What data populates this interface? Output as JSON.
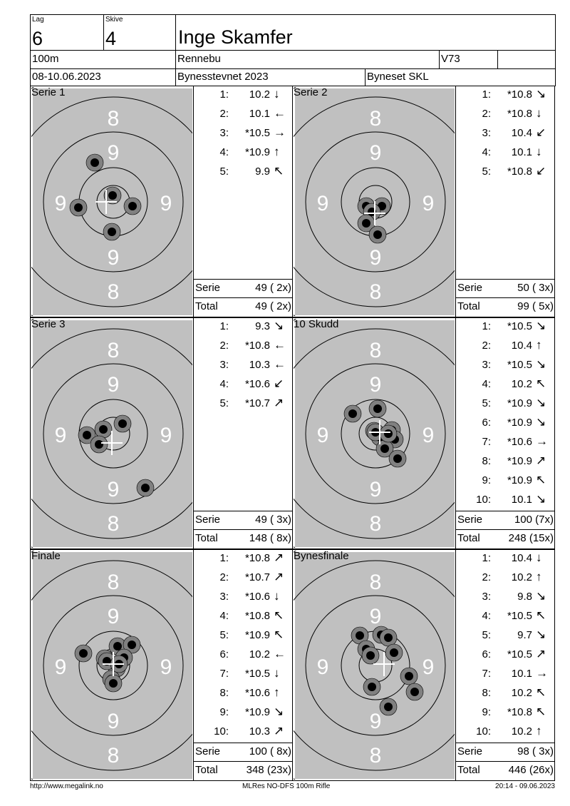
{
  "header": {
    "lag_label": "Lag",
    "lag": "6",
    "skive_label": "Skive",
    "skive": "4",
    "shooter": "Inge Skamfer",
    "distance": "100m",
    "club_place": "Rennebu",
    "class": "V73",
    "extra": "",
    "date": "08-10.06.2023",
    "event": "Bynesstevnet 2023",
    "organizer": "Byneset SKL"
  },
  "panels": [
    {
      "title": "Serie 1",
      "shots": [
        [
          "1:",
          "10.2",
          "↓"
        ],
        [
          "2:",
          "10.1",
          "←"
        ],
        [
          "3:",
          "*10.5",
          "→"
        ],
        [
          "4:",
          "*10.9",
          "↑"
        ],
        [
          "5:",
          "9.9",
          "↖"
        ]
      ],
      "serie_label": "Serie",
      "serie": "49 ( 2x)",
      "total_label": "Total",
      "total": "49 ( 2x)"
    },
    {
      "title": "Serie 2",
      "shots": [
        [
          "1:",
          "*10.8",
          "↘"
        ],
        [
          "2:",
          "*10.8",
          "↓"
        ],
        [
          "3:",
          "10.4",
          "↙"
        ],
        [
          "4:",
          "10.1",
          "↓"
        ],
        [
          "5:",
          "*10.8",
          "↙"
        ]
      ],
      "serie_label": "Serie",
      "serie": "50 ( 3x)",
      "total_label": "Total",
      "total": "99 ( 5x)"
    },
    {
      "title": "Serie 3",
      "shots": [
        [
          "1:",
          "9.3",
          "↘"
        ],
        [
          "2:",
          "*10.8",
          "←"
        ],
        [
          "3:",
          "10.3",
          "←"
        ],
        [
          "4:",
          "*10.6",
          "↙"
        ],
        [
          "5:",
          "*10.7",
          "↗"
        ]
      ],
      "serie_label": "Serie",
      "serie": "49 ( 3x)",
      "total_label": "Total",
      "total": "148 ( 8x)"
    },
    {
      "title": "10 Skudd",
      "shots": [
        [
          "1:",
          "*10.5",
          "↘"
        ],
        [
          "2:",
          "10.4",
          "↑"
        ],
        [
          "3:",
          "*10.5",
          "↘"
        ],
        [
          "4:",
          "10.2",
          "↖"
        ],
        [
          "5:",
          "*10.9",
          "↘"
        ],
        [
          "6:",
          "*10.9",
          "↘"
        ],
        [
          "7:",
          "*10.6",
          "→"
        ],
        [
          "8:",
          "*10.9",
          "↗"
        ],
        [
          "9:",
          "*10.9",
          "↖"
        ],
        [
          "10:",
          "10.1",
          "↘"
        ]
      ],
      "serie_label": "Serie",
      "serie": "100 (7x)",
      "total_label": "Total",
      "total": "248 (15x)"
    },
    {
      "title": "Finale",
      "shots": [
        [
          "1:",
          "*10.8",
          "↗"
        ],
        [
          "2:",
          "*10.7",
          "↗"
        ],
        [
          "3:",
          "*10.6",
          "↓"
        ],
        [
          "4:",
          "*10.8",
          "↖"
        ],
        [
          "5:",
          "*10.9",
          "↖"
        ],
        [
          "6:",
          "10.2",
          "←"
        ],
        [
          "7:",
          "*10.5",
          "↓"
        ],
        [
          "8:",
          "*10.6",
          "↑"
        ],
        [
          "9:",
          "*10.9",
          "↘"
        ],
        [
          "10:",
          "10.3",
          "↗"
        ]
      ],
      "serie_label": "Serie",
      "serie": "100 ( 8x)",
      "total_label": "Total",
      "total": "348 (23x)"
    },
    {
      "title": "Bynesfinale",
      "shots": [
        [
          "1:",
          "10.4",
          "↓"
        ],
        [
          "2:",
          "10.2",
          "↑"
        ],
        [
          "3:",
          "9.8",
          "↘"
        ],
        [
          "4:",
          "*10.5",
          "↖"
        ],
        [
          "5:",
          "9.7",
          "↘"
        ],
        [
          "6:",
          "*10.5",
          "↗"
        ],
        [
          "7:",
          "10.1",
          "→"
        ],
        [
          "8:",
          "10.2",
          "↖"
        ],
        [
          "9:",
          "*10.8",
          "↖"
        ],
        [
          "10:",
          "10.2",
          "↑"
        ]
      ],
      "serie_label": "Serie",
      "serie": "98 ( 3x)",
      "total_label": "Total",
      "total": "446 (26x)"
    }
  ],
  "target": {
    "ring_labels": [
      "8",
      "9"
    ],
    "colors": {
      "background": "#c0c0c0",
      "shot_ring": "#808080",
      "shot_core": "#000000",
      "labels": "#ffffff"
    }
  },
  "footer": {
    "url": "http://www.megalink.no",
    "software": "MLRes NO-DFS 100m Rifle",
    "printed": "20:14 - 09.06.2023"
  }
}
